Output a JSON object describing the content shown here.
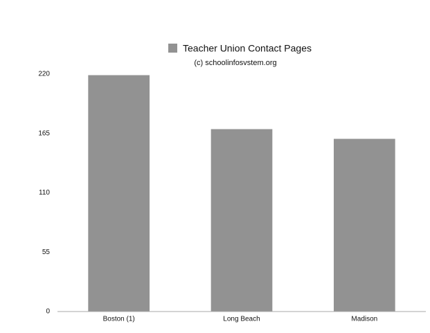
{
  "chart_data": {
    "type": "bar",
    "subtitle": "(c) schoolinfosvstem.org",
    "categories": [
      "Boston (1)",
      "Long Beach",
      "Madison"
    ],
    "series": [
      {
        "name": "Teacher Union Contact Pages",
        "color": "#929292",
        "values": [
          219,
          169,
          160
        ]
      }
    ],
    "ylim": [
      0,
      220
    ],
    "yticks": [
      0,
      55,
      110,
      165,
      220
    ],
    "grid": false,
    "legend": "top"
  }
}
